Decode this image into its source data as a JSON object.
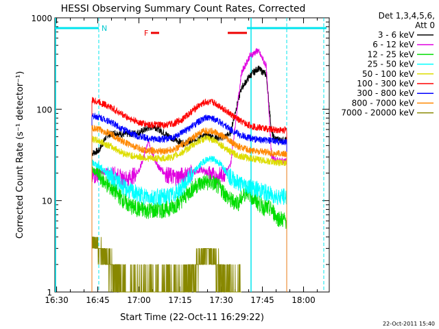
{
  "chart_data": {
    "type": "line",
    "title": "HESSI Observing Summary Count Rates, Corrected",
    "xlabel": "Start Time (22-Oct-11 16:29:22)",
    "ylabel": "Corrected Count Rate (s⁻¹ detector⁻¹)",
    "yscale": "log",
    "ylim": [
      1,
      1000
    ],
    "xlim": [
      "16:29",
      "18:09"
    ],
    "x_tick_labels": [
      "16:30",
      "16:45",
      "17:00",
      "17:15",
      "17:30",
      "17:45",
      "18:00"
    ],
    "y_tick_labels": [
      "1",
      "10",
      "100",
      "1000"
    ],
    "legend_header": [
      "Det 1,3,4,5,6,",
      "Att 0"
    ],
    "legend_position": "right",
    "footer_timestamp": "22-Oct-2011 15:40",
    "x_unit": "minutes since 16:29:22",
    "data_start": 13.5,
    "data_end": 84.5,
    "series": [
      {
        "name": "3 - 6 keV",
        "color": "#000000",
        "x": [
          13.5,
          16,
          19,
          22,
          25,
          28,
          31,
          34,
          36,
          38,
          41,
          44,
          47,
          50,
          53,
          56,
          59,
          62,
          64,
          66,
          68,
          71,
          74,
          77,
          78,
          79,
          80,
          82,
          84.5
        ],
        "y": [
          33,
          35,
          52,
          55,
          53,
          54,
          56,
          62,
          65,
          60,
          52,
          46,
          42,
          45,
          50,
          52,
          48,
          50,
          55,
          100,
          170,
          230,
          280,
          240,
          120,
          55,
          48,
          46,
          46
        ]
      },
      {
        "name": "6 - 12 keV",
        "color": "#e000e0",
        "x": [
          13.5,
          16,
          19,
          22,
          25,
          28,
          31,
          34,
          36,
          38,
          41,
          44,
          47,
          50,
          53,
          56,
          59,
          62,
          64,
          66,
          68,
          71,
          74,
          77,
          78,
          79,
          80,
          82,
          84.5
        ],
        "y": [
          18,
          20,
          21,
          19,
          17,
          18,
          22,
          45,
          30,
          23,
          19,
          18,
          19,
          20,
          22,
          20,
          18,
          20,
          24,
          80,
          250,
          380,
          440,
          300,
          100,
          30,
          28,
          27,
          27
        ]
      },
      {
        "name": "12 - 25 keV",
        "color": "#00dd00",
        "x": [
          13.5,
          16,
          19,
          22,
          25,
          28,
          31,
          34,
          37,
          40,
          43,
          46,
          49,
          52,
          55,
          58,
          61,
          64,
          67,
          70,
          73,
          76,
          79,
          81,
          84.5
        ],
        "y": [
          22,
          19,
          15,
          12.5,
          10,
          8.5,
          8,
          7.8,
          7.8,
          8,
          8.5,
          10,
          12.5,
          15,
          16,
          15.5,
          13,
          10,
          9.5,
          13,
          10,
          8.5,
          8,
          6.5,
          6
        ]
      },
      {
        "name": "25 - 50 keV",
        "color": "#00ffff",
        "x": [
          13.5,
          16,
          19,
          22,
          25,
          28,
          31,
          34,
          37,
          40,
          43,
          46,
          49,
          52,
          55,
          58,
          61,
          64,
          67,
          70,
          73,
          76,
          79,
          82,
          84.5
        ],
        "y": [
          26,
          24,
          20,
          17,
          14,
          12.5,
          11.5,
          11,
          11,
          11,
          11.5,
          13.5,
          17.5,
          23,
          28,
          28.5,
          24,
          18,
          15.5,
          14.5,
          13.5,
          12.5,
          11.5,
          11,
          11
        ]
      },
      {
        "name": "50 - 100 keV",
        "color": "#dddd00",
        "x": [
          13.5,
          16,
          19,
          22,
          25,
          28,
          31,
          34,
          37,
          40,
          43,
          46,
          49,
          52,
          55,
          58,
          61,
          64,
          67,
          70,
          73,
          76,
          79,
          82,
          84.5
        ],
        "y": [
          47,
          45,
          41,
          37,
          33,
          31,
          30,
          29,
          29,
          29,
          30,
          33,
          38,
          44,
          48,
          46,
          40,
          34,
          31,
          29.5,
          28.5,
          27.5,
          26.5,
          26,
          26
        ]
      },
      {
        "name": "100 - 300 keV",
        "color": "#ff0000",
        "x": [
          13.5,
          16,
          19,
          22,
          25,
          28,
          31,
          34,
          37,
          40,
          43,
          46,
          49,
          52,
          55,
          58,
          61,
          64,
          67,
          70,
          73,
          76,
          79,
          82,
          84.5
        ],
        "y": [
          125,
          120,
          110,
          98,
          86,
          77,
          71,
          68,
          67,
          67,
          69,
          76,
          90,
          107,
          120,
          118,
          104,
          88,
          76,
          68,
          64,
          62,
          60,
          59,
          59
        ]
      },
      {
        "name": "300 - 800 keV",
        "color": "#0000ff",
        "x": [
          13.5,
          16,
          19,
          22,
          25,
          28,
          31,
          34,
          37,
          40,
          43,
          46,
          49,
          52,
          55,
          58,
          61,
          64,
          67,
          70,
          73,
          76,
          79,
          82,
          84.5
        ],
        "y": [
          85,
          82,
          76,
          68,
          60,
          54,
          50,
          48,
          47,
          47,
          49,
          54,
          62,
          72,
          80,
          79,
          70,
          60,
          53,
          49,
          47,
          46,
          45,
          44,
          44
        ]
      },
      {
        "name": "800 - 7000 keV",
        "color": "#ff8800",
        "x": [
          13.5,
          16,
          19,
          22,
          25,
          28,
          31,
          34,
          37,
          40,
          43,
          46,
          49,
          52,
          55,
          58,
          61,
          64,
          67,
          70,
          73,
          76,
          79,
          82,
          84.5
        ],
        "y": [
          62,
          60,
          56,
          50,
          44,
          40,
          37,
          35,
          35,
          35,
          36,
          40,
          46,
          53,
          58,
          57,
          51,
          44,
          39,
          36,
          35,
          34,
          33,
          32.5,
          32.5
        ]
      },
      {
        "name": "7000 - 20000 keV",
        "color": "#888800",
        "x": [
          13.5,
          16,
          18,
          20,
          22,
          24,
          26,
          28,
          30,
          33,
          36,
          40,
          44,
          47,
          50,
          52,
          54,
          56,
          58,
          60,
          62,
          64,
          66,
          68
        ],
        "y": [
          3.5,
          3,
          2.5,
          2,
          1.6,
          1.3,
          1,
          1,
          1,
          1,
          1,
          1,
          1,
          1,
          1.5,
          2,
          2.6,
          2.8,
          2.4,
          1.8,
          1.4,
          1.1,
          1,
          1
        ]
      }
    ],
    "annotations": {
      "night_bars": [
        {
          "start": 0,
          "end": 16
        },
        {
          "start": 70,
          "end": 99
        }
      ],
      "night_marker": "N",
      "flare_marker": "F",
      "flare_bars": [
        {
          "start": 35,
          "end": 38
        },
        {
          "start": 63,
          "end": 70
        }
      ],
      "saa_dashed_lines": [
        16,
        84.5,
        98
      ],
      "solid_cyan_line": 71.5
    }
  }
}
